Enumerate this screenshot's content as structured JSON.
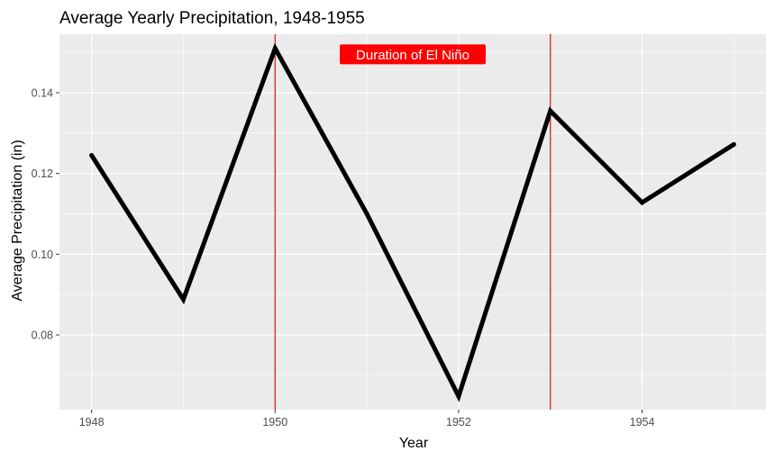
{
  "chart_data": {
    "type": "line",
    "title": "Average Yearly Precipitation, 1948-1955",
    "xlabel": "Year",
    "ylabel": "Average Precipitation (in)",
    "x": [
      1948,
      1949,
      1950,
      1951,
      1952,
      1953,
      1954,
      1955
    ],
    "series": [
      {
        "values": [
          0.1245,
          0.0888,
          0.151,
          0.11,
          0.0648,
          0.1355,
          0.1128,
          0.1272
        ]
      }
    ],
    "xlim": [
      1947.65,
      1955.35
    ],
    "ylim": [
      0.0615,
      0.1545
    ],
    "x_ticks": [
      1948,
      1950,
      1952,
      1954
    ],
    "x_tick_labels": [
      "1948",
      "1950",
      "1952",
      "1954"
    ],
    "y_ticks": [
      0.08,
      0.1,
      0.12,
      0.14
    ],
    "y_tick_labels": [
      "0.08",
      "0.10",
      "0.12",
      "0.14"
    ],
    "grid": true,
    "vlines": [
      1950,
      1953
    ],
    "annotation": {
      "text": "Duration of El Niño",
      "x": 1951.5,
      "y": 0.1495
    },
    "colors": {
      "panel_bg": "#ebebeb",
      "grid": "#ffffff",
      "line": "#000000",
      "vline": "#cc0000",
      "annotation_bg": "#ff0000",
      "annotation_text": "#ffffff"
    }
  }
}
